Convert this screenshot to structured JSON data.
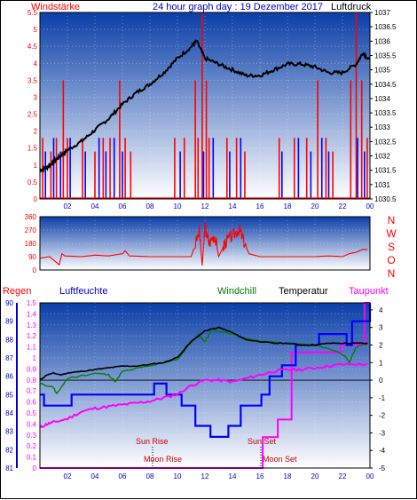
{
  "colors": {
    "grad_top": "#0a3fa8",
    "grad_bottom": "#ffffff",
    "wind_red": "#ff0000",
    "wind_blue": "#0000ff",
    "pressure": "#000000",
    "label_red": "#ff0000",
    "label_blue": "#0000cc",
    "label_green": "#008000",
    "label_magenta": "#ff00ff",
    "title_blue": "#0000cc",
    "dew": "#ff00ff",
    "humidity": "#0000ff",
    "windchill": "#008000",
    "temperature": "#000000"
  },
  "chart_data": [
    {
      "id": "wind-pressure",
      "type": "line",
      "title": "24 hour graph day : 19 Dezember 2017",
      "left_label": "Windstärke",
      "right_label": "Luftdruck",
      "x_ticks": [
        "02",
        "04",
        "06",
        "08",
        "10",
        "12",
        "14",
        "16",
        "18",
        "20",
        "22",
        "00"
      ],
      "left_ticks": [
        "0",
        "0.5",
        "1",
        "1.5",
        "2",
        "2.5",
        "3",
        "3.5",
        "4",
        "4.5",
        "5",
        "5.5"
      ],
      "left_range": [
        0,
        5.5
      ],
      "right_ticks": [
        "1030.5",
        "1031",
        "1031.5",
        "1032",
        "1032.5",
        "1033",
        "1033.5",
        "1034",
        "1034.5",
        "1035",
        "1035.5",
        "1036",
        "1036.5",
        "1037"
      ],
      "right_range": [
        1030.5,
        1037
      ],
      "grid": true,
      "series": [
        {
          "name": "Luftdruck",
          "axis": "right",
          "points": [
            [
              0,
              1031.5
            ],
            [
              0.5,
              1031.6
            ],
            [
              1,
              1031.8
            ],
            [
              1.5,
              1032.0
            ],
            [
              2,
              1032.2
            ],
            [
              3,
              1032.5
            ],
            [
              4,
              1032.9
            ],
            [
              5,
              1033.3
            ],
            [
              6,
              1033.8
            ],
            [
              7,
              1034.2
            ],
            [
              8,
              1034.5
            ],
            [
              9,
              1034.9
            ],
            [
              10,
              1035.4
            ],
            [
              11,
              1035.8
            ],
            [
              11.4,
              1036.0
            ],
            [
              12,
              1035.4
            ],
            [
              13,
              1035.2
            ],
            [
              14,
              1035.0
            ],
            [
              15,
              1034.8
            ],
            [
              16,
              1034.8
            ],
            [
              17,
              1035.0
            ],
            [
              18,
              1035.2
            ],
            [
              19,
              1035.2
            ],
            [
              20,
              1035.1
            ],
            [
              21,
              1034.9
            ],
            [
              22,
              1034.9
            ],
            [
              23,
              1035.2
            ],
            [
              23.5,
              1035.6
            ],
            [
              24,
              1035.3
            ]
          ]
        },
        {
          "name": "Wind gust",
          "axis": "left",
          "style": "red bars",
          "values": [
            [
              0.2,
              1.8
            ],
            [
              0.8,
              1.4
            ],
            [
              1.2,
              1.8
            ],
            [
              1.7,
              3.5
            ],
            [
              2.0,
              1.8
            ],
            [
              3.1,
              1.8
            ],
            [
              4.0,
              1.4
            ],
            [
              4.6,
              1.8
            ],
            [
              5.1,
              1.8
            ],
            [
              5.8,
              3.5
            ],
            [
              6.2,
              1.8
            ],
            [
              6.6,
              1.4
            ],
            [
              9.8,
              1.8
            ],
            [
              10.5,
              1.8
            ],
            [
              11.3,
              3.5
            ],
            [
              11.5,
              1.8
            ],
            [
              11.8,
              5.5
            ],
            [
              12.1,
              3.5
            ],
            [
              12.3,
              1.8
            ],
            [
              13.6,
              1.8
            ],
            [
              14.3,
              1.8
            ],
            [
              14.9,
              1.4
            ],
            [
              17.4,
              1.8
            ],
            [
              18.5,
              1.8
            ],
            [
              19.4,
              1.8
            ],
            [
              20.2,
              3.5
            ],
            [
              20.8,
              1.8
            ],
            [
              21.3,
              1.4
            ],
            [
              22.6,
              3.5
            ],
            [
              23.0,
              5.5
            ],
            [
              23.4,
              3.5
            ],
            [
              23.8,
              1.8
            ]
          ]
        },
        {
          "name": "Wind mean",
          "axis": "left",
          "style": "blue bars",
          "values": [
            [
              0.4,
              1.4
            ],
            [
              1.0,
              1.8
            ],
            [
              1.5,
              1.4
            ],
            [
              2.2,
              1.8
            ],
            [
              3.3,
              1.4
            ],
            [
              4.3,
              1.8
            ],
            [
              4.8,
              1.4
            ],
            [
              5.4,
              1.8
            ],
            [
              6.0,
              1.4
            ],
            [
              10.2,
              1.4
            ],
            [
              11.9,
              1.4
            ],
            [
              12.6,
              1.8
            ],
            [
              13.8,
              1.4
            ],
            [
              14.6,
              1.8
            ],
            [
              17.6,
              1.4
            ],
            [
              18.8,
              1.8
            ],
            [
              19.7,
              1.4
            ],
            [
              20.5,
              1.8
            ],
            [
              21.0,
              1.4
            ],
            [
              23.1,
              1.8
            ],
            [
              23.6,
              1.4
            ]
          ]
        }
      ]
    },
    {
      "id": "wind-direction",
      "type": "line",
      "left_ticks": [
        "0",
        "90",
        "180",
        "270",
        "360"
      ],
      "left_range": [
        0,
        360
      ],
      "right_labels": [
        "N",
        "W",
        "S",
        "O",
        "N"
      ],
      "grid": true,
      "series": [
        {
          "name": "Windrichtung",
          "points": [
            [
              0,
              80
            ],
            [
              0.7,
              90
            ],
            [
              1.4,
              35
            ],
            [
              1.6,
              110
            ],
            [
              1.8,
              95
            ],
            [
              3,
              90
            ],
            [
              4,
              100
            ],
            [
              5,
              95
            ],
            [
              6,
              110
            ],
            [
              6.2,
              130
            ],
            [
              6.5,
              95
            ],
            [
              8,
              90
            ],
            [
              9,
              90
            ],
            [
              10,
              90
            ],
            [
              11,
              90
            ],
            [
              11.6,
              260
            ],
            [
              11.8,
              30
            ],
            [
              12,
              290
            ],
            [
              12.3,
              180
            ],
            [
              12.7,
              240
            ],
            [
              13,
              90
            ],
            [
              13.3,
              150
            ],
            [
              13.5,
              190
            ],
            [
              14,
              230
            ],
            [
              14.5,
              280
            ],
            [
              14.8,
              200
            ],
            [
              15.2,
              110
            ],
            [
              16,
              90
            ],
            [
              18,
              90
            ],
            [
              20,
              90
            ],
            [
              21,
              95
            ],
            [
              22,
              90
            ],
            [
              22.5,
              110
            ],
            [
              23,
              120
            ],
            [
              23.5,
              140
            ],
            [
              24,
              135
            ]
          ]
        }
      ]
    },
    {
      "id": "temp-humidity",
      "type": "line",
      "legend": [
        "Regen",
        "Luftfeuchte",
        "Windchill",
        "Temperatur",
        "Taupunkt"
      ],
      "left_ticks": [
        "81",
        "82",
        "83",
        "84",
        "85",
        "86",
        "87",
        "88",
        "89",
        "90"
      ],
      "left_range": [
        81,
        90
      ],
      "rain_ticks": [
        "0",
        "0.1",
        "0.2",
        "0.3",
        "0.4",
        "0.5",
        "0.6",
        "0.7",
        "0.8",
        "0.9",
        "1",
        "1.1",
        "1.2",
        "1.3",
        "1.4",
        "1.5"
      ],
      "rain_range": [
        0,
        1.5
      ],
      "right_ticks": [
        "-5",
        "-4",
        "-3",
        "-2",
        "-1",
        "0",
        "1",
        "2",
        "3",
        "4"
      ],
      "right_range": [
        -5,
        4.4
      ],
      "x_ticks": [
        "02",
        "04",
        "06",
        "08",
        "10",
        "12",
        "14",
        "16",
        "18",
        "20",
        "22",
        "00"
      ],
      "grid": true,
      "annotations": [
        "Sun Rise",
        "Moon Rise",
        "Sun Set",
        "Moon Set"
      ],
      "series": [
        {
          "name": "Temperatur",
          "axis": "right",
          "points": [
            [
              0,
              0
            ],
            [
              0.5,
              0.3
            ],
            [
              1,
              0.4
            ],
            [
              1.5,
              0.3
            ],
            [
              2,
              0.4
            ],
            [
              3,
              0.5
            ],
            [
              4,
              0.6
            ],
            [
              5,
              0.7
            ],
            [
              6,
              0.8
            ],
            [
              7,
              0.8
            ],
            [
              8,
              0.9
            ],
            [
              9,
              1.0
            ],
            [
              10,
              1.3
            ],
            [
              11,
              2.2
            ],
            [
              12,
              2.8
            ],
            [
              13,
              3.0
            ],
            [
              14,
              2.7
            ],
            [
              15,
              2.3
            ],
            [
              16,
              2.2
            ],
            [
              17,
              2.1
            ],
            [
              18,
              2.1
            ],
            [
              19,
              2.0
            ],
            [
              20,
              2.0
            ],
            [
              21,
              2.1
            ],
            [
              22,
              2.1
            ],
            [
              23,
              2.1
            ],
            [
              24,
              2.1
            ]
          ]
        },
        {
          "name": "Windchill",
          "axis": "right",
          "points": [
            [
              0,
              -0.2
            ],
            [
              1,
              -0.4
            ],
            [
              1.2,
              -0.8
            ],
            [
              2,
              0.1
            ],
            [
              4,
              0.4
            ],
            [
              5,
              0.3
            ],
            [
              5.5,
              -0.1
            ],
            [
              6,
              0.5
            ],
            [
              8,
              0.8
            ],
            [
              10,
              1.2
            ],
            [
              11.5,
              2.6
            ],
            [
              12,
              2.2
            ],
            [
              12.5,
              2.9
            ],
            [
              14,
              2.6
            ],
            [
              16,
              2.2
            ],
            [
              18,
              2.1
            ],
            [
              20,
              2.0
            ],
            [
              21,
              1.8
            ],
            [
              22,
              1.5
            ],
            [
              22.5,
              1.0
            ],
            [
              23,
              1.9
            ],
            [
              24,
              2.1
            ]
          ]
        },
        {
          "name": "Taupunkt",
          "axis": "right",
          "points": [
            [
              0,
              -2.7
            ],
            [
              0.5,
              -2.5
            ],
            [
              1,
              -2.4
            ],
            [
              2,
              -2.2
            ],
            [
              3,
              -1.8
            ],
            [
              4,
              -1.6
            ],
            [
              5,
              -1.5
            ],
            [
              6,
              -1.4
            ],
            [
              7,
              -1.3
            ],
            [
              8,
              -1.2
            ],
            [
              9,
              -1.0
            ],
            [
              10,
              -0.8
            ],
            [
              11,
              -0.3
            ],
            [
              12,
              0.0
            ],
            [
              13,
              0.0
            ],
            [
              14,
              -0.1
            ],
            [
              15,
              0.1
            ],
            [
              16,
              0.3
            ],
            [
              17,
              0.5
            ],
            [
              18,
              0.6
            ],
            [
              19,
              0.6
            ],
            [
              20,
              0.7
            ],
            [
              21,
              0.8
            ],
            [
              22,
              0.9
            ],
            [
              23,
              0.9
            ],
            [
              24,
              0.9
            ]
          ]
        },
        {
          "name": "Luftfeuchte",
          "axis": "left",
          "steps": [
            [
              0,
              85
            ],
            [
              0.3,
              84.4
            ],
            [
              2.3,
              85
            ],
            [
              8.3,
              85.6
            ],
            [
              9.2,
              85
            ],
            [
              10.3,
              84.4
            ],
            [
              11.3,
              83.3
            ],
            [
              12.4,
              82.7
            ],
            [
              13.7,
              83.3
            ],
            [
              14.6,
              84.4
            ],
            [
              16.1,
              85
            ],
            [
              16.7,
              86
            ],
            [
              17.6,
              86.6
            ],
            [
              18.6,
              87.7
            ],
            [
              20.3,
              88.3
            ],
            [
              22.3,
              87.7
            ],
            [
              22.7,
              89
            ],
            [
              24,
              90
            ]
          ]
        },
        {
          "name": "Regen",
          "axis": "rain",
          "steps": [
            [
              0,
              0
            ],
            [
              16.0,
              0
            ],
            [
              16.2,
              0.28
            ],
            [
              17.2,
              0.28
            ],
            [
              17.3,
              0.44
            ],
            [
              18.2,
              0.44
            ],
            [
              18.3,
              1.05
            ],
            [
              21.8,
              1.05
            ],
            [
              21.9,
              1.12
            ],
            [
              23.5,
              1.12
            ],
            [
              23.6,
              1.5
            ],
            [
              24,
              1.5
            ]
          ]
        }
      ]
    }
  ],
  "bottom_labels": {
    "sun_rise": "Sun Rise",
    "moon_rise": "Moon Rise",
    "sun_set": "Sun Set",
    "moon_set": "Moon Set"
  }
}
